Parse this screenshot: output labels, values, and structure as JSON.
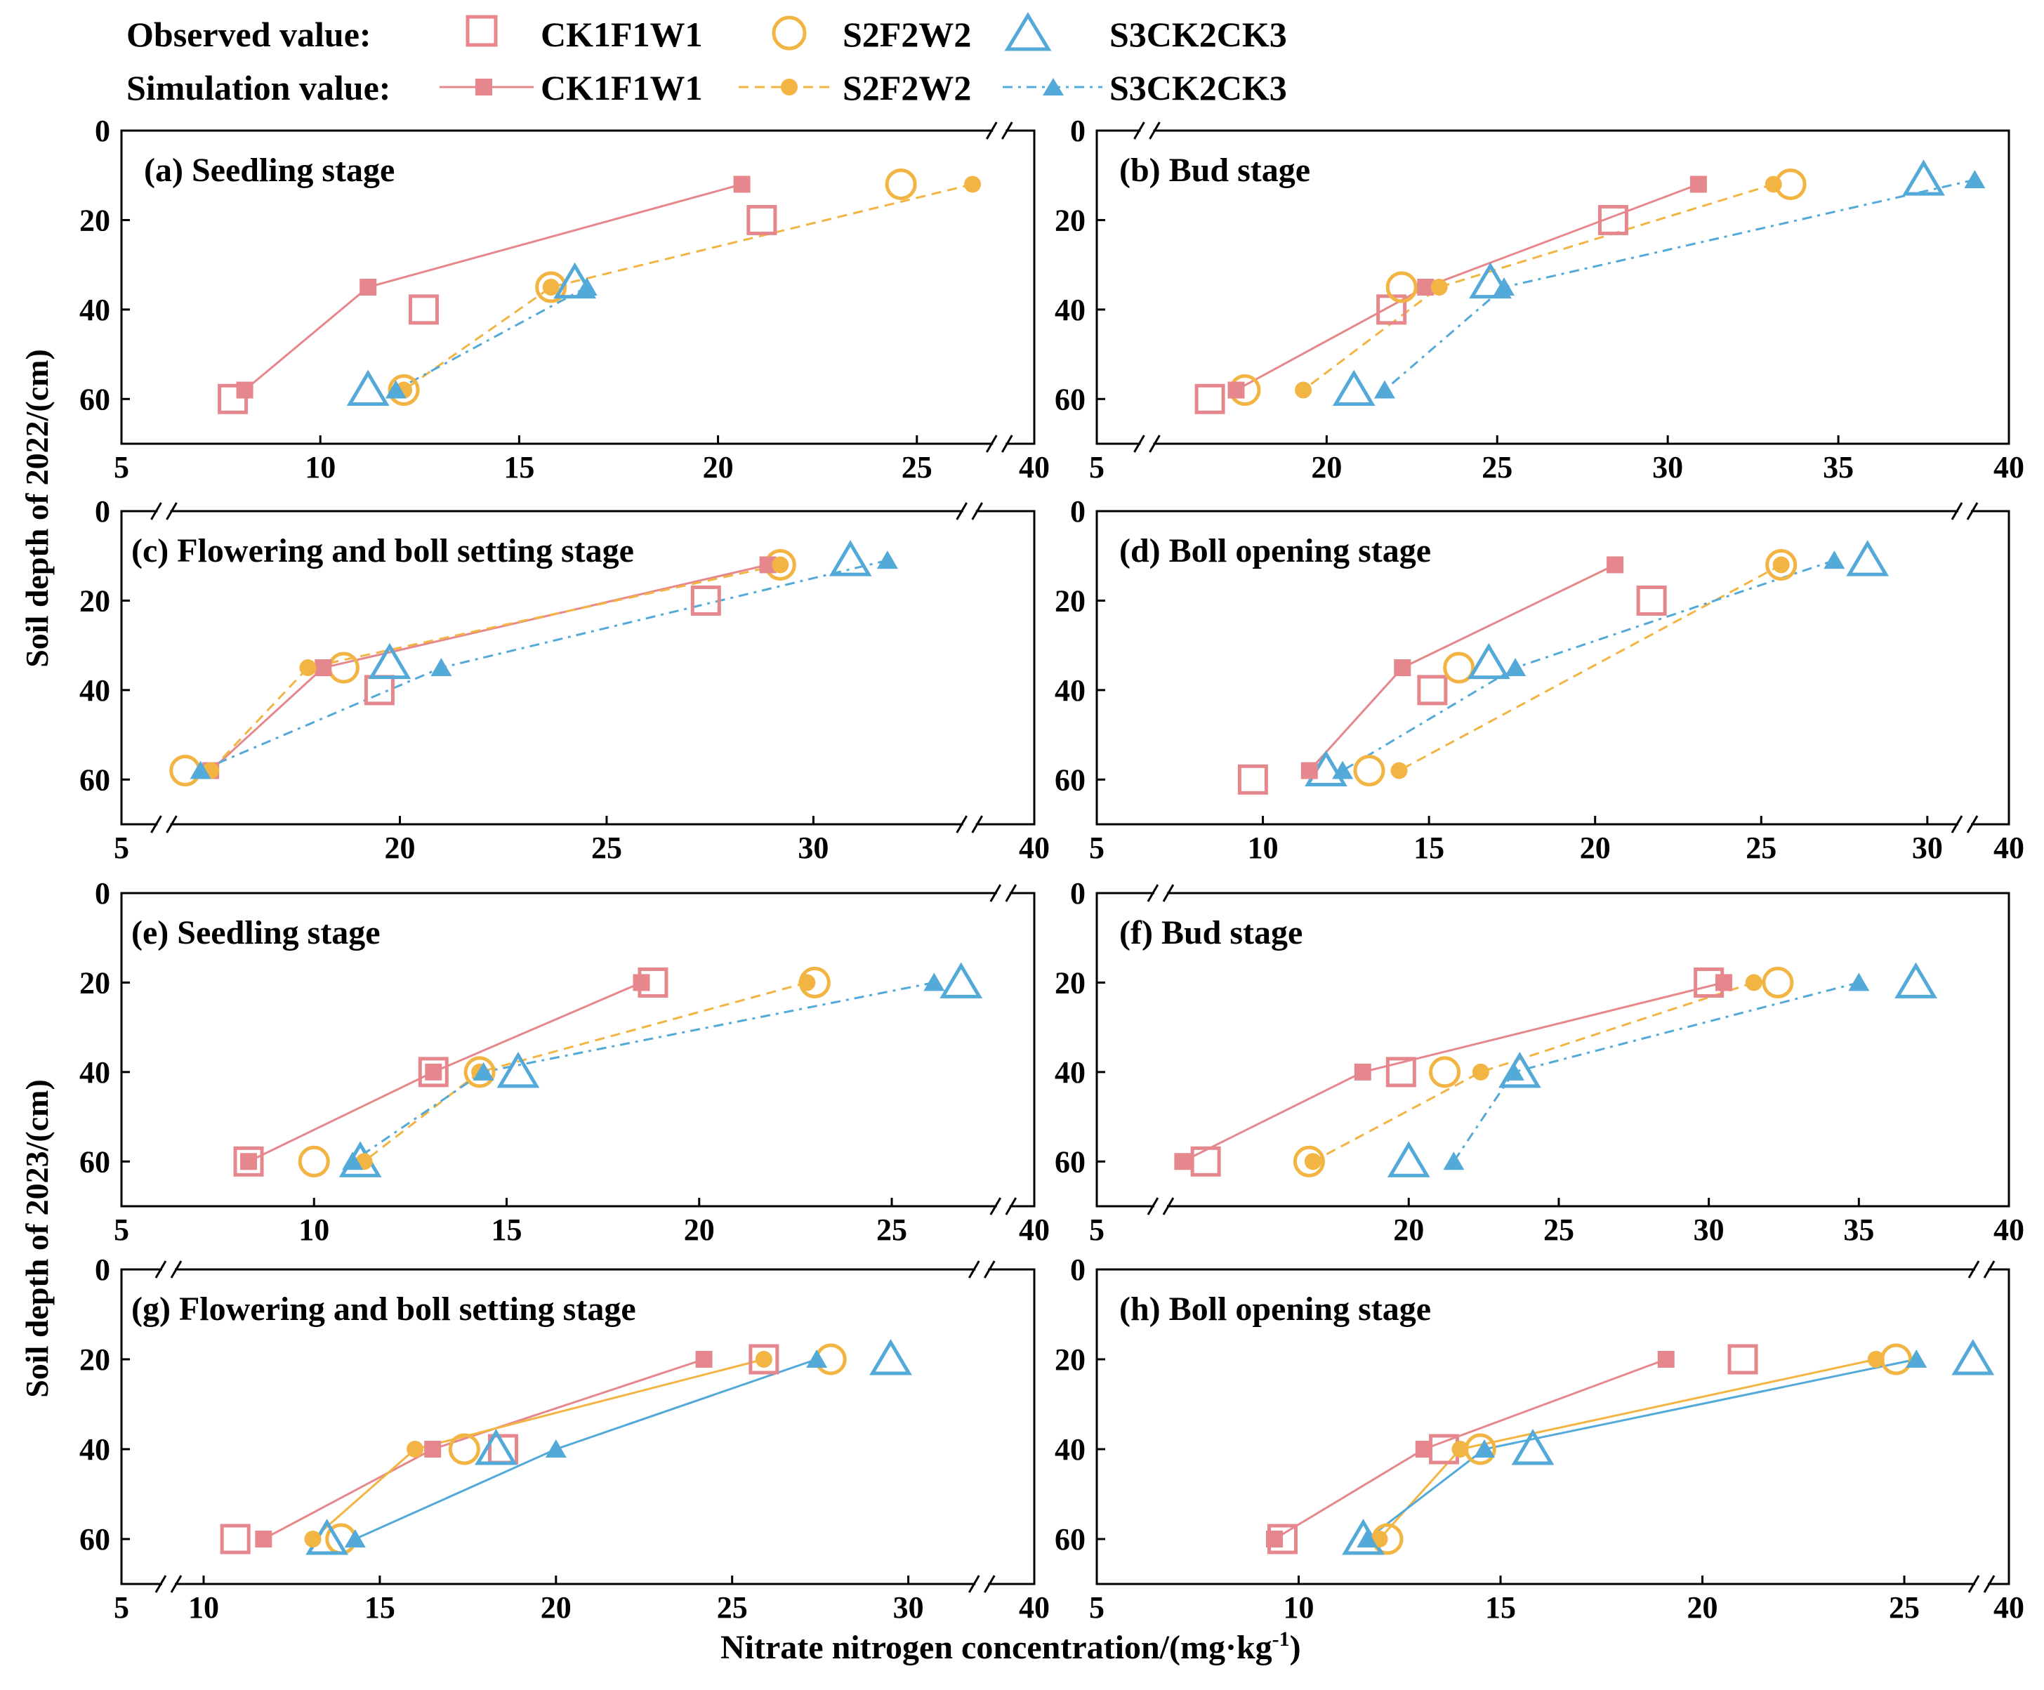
{
  "legend": {
    "observed_label": "Observed value:",
    "simulated_label": "Simulation value:",
    "treatments": [
      "CK1F1W1",
      "S2F2W2",
      "S3CK2CK3"
    ]
  },
  "ylabels": {
    "year2022": "Soil depth of 2022/(cm)",
    "year2023": "Soil depth of 2023/(cm)"
  },
  "xlabel": {
    "main": "Nitrate nitrogen concentration/(mg·kg",
    "superscript": "-1",
    "close": ")"
  },
  "colors": {
    "CK1F1W1": "#e5878c",
    "S2F2W2": "#f2b443",
    "S3CK2CK3": "#53a9d7"
  },
  "chart_data": [
    {
      "id": "a",
      "type": "scatter",
      "title": "(a) Seedling stage",
      "xlim": [
        5,
        40
      ],
      "xbreak": [
        27,
        39
      ],
      "xticks": [
        5,
        10,
        15,
        20,
        25,
        40
      ],
      "ylim": [
        70,
        0
      ],
      "yticks": [
        0,
        20,
        40,
        60
      ],
      "ylabel": "Soil depth of 2022/(cm)",
      "series": [
        {
          "name": "CK1F1W1",
          "kind": "observed",
          "points": [
            [
              21.1,
              20
            ],
            [
              12.6,
              40
            ],
            [
              7.8,
              60
            ]
          ]
        },
        {
          "name": "S2F2W2",
          "kind": "observed",
          "points": [
            [
              24.6,
              12
            ],
            [
              15.8,
              35
            ],
            [
              12.1,
              58
            ]
          ]
        },
        {
          "name": "S3CK2CK3",
          "kind": "observed",
          "points": [
            [
              16.4,
              34
            ],
            [
              11.2,
              58
            ]
          ]
        },
        {
          "name": "CK1F1W1",
          "kind": "simulated",
          "points": [
            [
              20.6,
              12
            ],
            [
              11.2,
              35
            ],
            [
              8.1,
              58
            ]
          ]
        },
        {
          "name": "S2F2W2",
          "kind": "simulated",
          "points": [
            [
              26.4,
              12
            ],
            [
              15.8,
              35
            ],
            [
              12.1,
              58
            ]
          ]
        },
        {
          "name": "S3CK2CK3",
          "kind": "simulated",
          "points": [
            [
              16.7,
              35
            ],
            [
              11.9,
              58
            ]
          ]
        }
      ]
    },
    {
      "id": "b",
      "type": "scatter",
      "title": "(b) Bud stage",
      "xlim": [
        5,
        40
      ],
      "xbreak": [
        6.2,
        14
      ],
      "xticks": [
        5,
        20,
        25,
        30,
        35,
        40
      ],
      "ylim": [
        70,
        0
      ],
      "yticks": [
        0,
        20,
        40,
        60
      ],
      "ylabel": "Soil depth of 2022/(cm)",
      "series": [
        {
          "name": "CK1F1W1",
          "kind": "observed",
          "points": [
            [
              28.4,
              20
            ],
            [
              21.9,
              40
            ],
            [
              16.0,
              60
            ]
          ]
        },
        {
          "name": "S2F2W2",
          "kind": "observed",
          "points": [
            [
              33.6,
              12
            ],
            [
              22.2,
              35
            ],
            [
              17.2,
              58
            ]
          ]
        },
        {
          "name": "S3CK2CK3",
          "kind": "observed",
          "points": [
            [
              37.5,
              11
            ],
            [
              24.8,
              34
            ],
            [
              20.8,
              58
            ]
          ]
        },
        {
          "name": "CK1F1W1",
          "kind": "simulated",
          "points": [
            [
              30.9,
              12
            ],
            [
              22.9,
              35
            ],
            [
              16.9,
              58
            ]
          ]
        },
        {
          "name": "S2F2W2",
          "kind": "simulated",
          "points": [
            [
              33.1,
              12
            ],
            [
              23.3,
              35
            ],
            [
              19.2,
              58
            ]
          ]
        },
        {
          "name": "S3CK2CK3",
          "kind": "simulated",
          "points": [
            [
              39.0,
              11
            ],
            [
              25.2,
              35
            ],
            [
              21.7,
              58
            ]
          ]
        }
      ]
    },
    {
      "id": "c",
      "type": "scatter",
      "title": "(c) Flowering and boll setting stage",
      "xlim": [
        5,
        40
      ],
      "xbreak": [
        6,
        15.5
      ],
      "xticks": [
        5,
        20,
        25,
        30,
        40
      ],
      "xbreak2": [
        32.8,
        39
      ],
      "ylim": [
        70,
        0
      ],
      "yticks": [
        0,
        20,
        40,
        60
      ],
      "ylabel": "Soil depth of 2022/(cm)",
      "series": [
        {
          "name": "CK1F1W1",
          "kind": "observed",
          "points": [
            [
              27.4,
              20
            ],
            [
              19.6,
              40
            ]
          ]
        },
        {
          "name": "S2F2W2",
          "kind": "observed",
          "points": [
            [
              29.2,
              12
            ],
            [
              18.9,
              35
            ],
            [
              15.8,
              58
            ]
          ]
        },
        {
          "name": "S3CK2CK3",
          "kind": "observed",
          "points": [
            [
              30.8,
              11
            ],
            [
              19.8,
              34
            ]
          ]
        },
        {
          "name": "CK1F1W1",
          "kind": "simulated",
          "points": [
            [
              28.9,
              12
            ],
            [
              18.5,
              35
            ],
            [
              16.3,
              58
            ]
          ]
        },
        {
          "name": "S2F2W2",
          "kind": "simulated",
          "points": [
            [
              29.2,
              12
            ],
            [
              18.2,
              35
            ],
            [
              16.3,
              58
            ]
          ]
        },
        {
          "name": "S3CK2CK3",
          "kind": "simulated",
          "points": [
            [
              31.6,
              11
            ],
            [
              21.0,
              35
            ],
            [
              16.1,
              58
            ]
          ]
        }
      ]
    },
    {
      "id": "d",
      "type": "scatter",
      "title": "(d) Boll opening stage",
      "xlim": [
        5,
        40
      ],
      "xbreak": [
        31,
        39
      ],
      "xticks": [
        5,
        10,
        15,
        20,
        25,
        30,
        40
      ],
      "ylim": [
        70,
        0
      ],
      "yticks": [
        0,
        20,
        40,
        60
      ],
      "ylabel": "Soil depth of 2022/(cm)",
      "series": [
        {
          "name": "CK1F1W1",
          "kind": "observed",
          "points": [
            [
              21.7,
              20
            ],
            [
              15.1,
              40
            ],
            [
              9.7,
              60
            ]
          ]
        },
        {
          "name": "S2F2W2",
          "kind": "observed",
          "points": [
            [
              25.6,
              12
            ],
            [
              15.9,
              35
            ],
            [
              13.2,
              58
            ]
          ]
        },
        {
          "name": "S3CK2CK3",
          "kind": "observed",
          "points": [
            [
              28.2,
              11
            ],
            [
              16.8,
              34
            ],
            [
              11.9,
              58
            ]
          ]
        },
        {
          "name": "CK1F1W1",
          "kind": "simulated",
          "points": [
            [
              20.6,
              12
            ],
            [
              14.2,
              35
            ],
            [
              11.4,
              58
            ]
          ]
        },
        {
          "name": "S2F2W2",
          "kind": "simulated",
          "points": [
            [
              25.6,
              12
            ],
            [
              14.1,
              58
            ]
          ]
        },
        {
          "name": "S3CK2CK3",
          "kind": "simulated",
          "points": [
            [
              27.2,
              11
            ],
            [
              17.6,
              35
            ],
            [
              12.4,
              58
            ]
          ]
        }
      ]
    },
    {
      "id": "e",
      "type": "scatter",
      "title": "(e) Seedling stage",
      "xlim": [
        5,
        40
      ],
      "xbreak": [
        27.8,
        38.6
      ],
      "xticks": [
        5,
        10,
        15,
        20,
        25,
        40
      ],
      "ylim": [
        70,
        0
      ],
      "yticks": [
        0,
        20,
        40,
        60
      ],
      "ylabel": "Soil depth of 2023/(cm)",
      "series": [
        {
          "name": "CK1F1W1",
          "kind": "observed",
          "points": [
            [
              18.8,
              20
            ],
            [
              13.1,
              40
            ],
            [
              8.3,
              60
            ]
          ]
        },
        {
          "name": "S2F2W2",
          "kind": "observed",
          "points": [
            [
              23.0,
              20
            ],
            [
              14.3,
              40
            ],
            [
              10.0,
              60
            ]
          ]
        },
        {
          "name": "S3CK2CK3",
          "kind": "observed",
          "points": [
            [
              26.8,
              20
            ],
            [
              15.3,
              40
            ],
            [
              11.2,
              60
            ]
          ]
        },
        {
          "name": "CK1F1W1",
          "kind": "simulated",
          "points": [
            [
              18.5,
              20
            ],
            [
              13.1,
              40
            ],
            [
              8.3,
              60
            ]
          ]
        },
        {
          "name": "S2F2W2",
          "kind": "simulated",
          "points": [
            [
              22.8,
              20
            ],
            [
              14.3,
              40
            ],
            [
              11.3,
              60
            ]
          ]
        },
        {
          "name": "S3CK2CK3",
          "kind": "simulated",
          "points": [
            [
              26.1,
              20
            ],
            [
              14.4,
              40
            ],
            [
              11.0,
              60
            ]
          ]
        }
      ]
    },
    {
      "id": "f",
      "type": "scatter",
      "title": "(f) Bud stage",
      "xlim": [
        5,
        40
      ],
      "xbreak": [
        7,
        14
      ],
      "xticks": [
        5,
        20,
        25,
        30,
        35,
        40
      ],
      "ylim": [
        70,
        0
      ],
      "yticks": [
        0,
        20,
        40,
        60
      ],
      "ylabel": "Soil depth of 2023/(cm)",
      "series": [
        {
          "name": "CK1F1W1",
          "kind": "observed",
          "points": [
            [
              30.0,
              20
            ],
            [
              19.8,
              40
            ],
            [
              14.7,
              60
            ]
          ]
        },
        {
          "name": "S2F2W2",
          "kind": "observed",
          "points": [
            [
              32.3,
              20
            ],
            [
              21.2,
              40
            ],
            [
              17.4,
              60
            ]
          ]
        },
        {
          "name": "S3CK2CK3",
          "kind": "observed",
          "points": [
            [
              36.9,
              20
            ],
            [
              23.7,
              40
            ],
            [
              20.0,
              60
            ]
          ]
        },
        {
          "name": "CK1F1W1",
          "kind": "simulated",
          "points": [
            [
              30.5,
              20
            ],
            [
              18.8,
              40
            ],
            [
              14.1,
              60
            ]
          ]
        },
        {
          "name": "S2F2W2",
          "kind": "simulated",
          "points": [
            [
              31.5,
              20
            ],
            [
              22.4,
              40
            ],
            [
              17.5,
              60
            ]
          ]
        },
        {
          "name": "S3CK2CK3",
          "kind": "simulated",
          "points": [
            [
              35.0,
              20
            ],
            [
              23.5,
              40
            ],
            [
              21.5,
              60
            ]
          ]
        }
      ]
    },
    {
      "id": "g",
      "type": "scatter",
      "title": "(g) Flowering and boll setting stage",
      "xlim": [
        5,
        40
      ],
      "xbreak": [
        6.8,
        8.9
      ],
      "xbreak2": [
        31.8,
        39
      ],
      "xticks": [
        5,
        10,
        15,
        20,
        25,
        30,
        40
      ],
      "ylim": [
        70,
        0
      ],
      "yticks": [
        0,
        20,
        40,
        60
      ],
      "ylabel": "Soil depth of 2023/(cm)",
      "series": [
        {
          "name": "CK1F1W1",
          "kind": "observed",
          "points": [
            [
              25.9,
              20
            ],
            [
              18.5,
              40
            ],
            [
              10.9,
              60
            ]
          ]
        },
        {
          "name": "S2F2W2",
          "kind": "observed",
          "points": [
            [
              27.8,
              20
            ],
            [
              17.4,
              40
            ],
            [
              13.9,
              60
            ]
          ]
        },
        {
          "name": "S3CK2CK3",
          "kind": "observed",
          "points": [
            [
              29.5,
              20
            ],
            [
              18.3,
              40
            ],
            [
              13.5,
              60
            ]
          ]
        },
        {
          "name": "CK1F1W1",
          "kind": "simulated",
          "points": [
            [
              24.2,
              20
            ],
            [
              16.5,
              40
            ],
            [
              11.7,
              60
            ]
          ]
        },
        {
          "name": "S2F2W2",
          "kind": "simulated",
          "points": [
            [
              25.9,
              20
            ],
            [
              16.0,
              40
            ],
            [
              13.1,
              60
            ]
          ]
        },
        {
          "name": "S3CK2CK3",
          "kind": "simulated",
          "points": [
            [
              27.4,
              20
            ],
            [
              20.0,
              40
            ],
            [
              14.3,
              60
            ]
          ]
        }
      ]
    },
    {
      "id": "h",
      "type": "scatter",
      "title": "(h) Boll opening stage",
      "xlim": [
        5,
        40
      ],
      "xbreak": [
        26.8,
        38.6
      ],
      "xticks": [
        5,
        10,
        15,
        20,
        25,
        40
      ],
      "ylim": [
        70,
        0
      ],
      "yticks": [
        0,
        20,
        40,
        60
      ],
      "ylabel": "Soil depth of 2023/(cm)",
      "series": [
        {
          "name": "CK1F1W1",
          "kind": "observed",
          "points": [
            [
              21.0,
              20
            ],
            [
              13.6,
              40
            ],
            [
              9.6,
              60
            ]
          ]
        },
        {
          "name": "S2F2W2",
          "kind": "observed",
          "points": [
            [
              24.8,
              20
            ],
            [
              14.5,
              40
            ],
            [
              12.2,
              60
            ]
          ]
        },
        {
          "name": "S3CK2CK3",
          "kind": "observed",
          "points": [
            [
              26.7,
              20
            ],
            [
              15.8,
              40
            ],
            [
              11.6,
              60
            ]
          ]
        },
        {
          "name": "CK1F1W1",
          "kind": "simulated",
          "points": [
            [
              19.1,
              20
            ],
            [
              13.1,
              40
            ],
            [
              9.4,
              60
            ]
          ]
        },
        {
          "name": "S2F2W2",
          "kind": "simulated",
          "points": [
            [
              24.3,
              20
            ],
            [
              14.0,
              40
            ],
            [
              12.0,
              60
            ]
          ]
        },
        {
          "name": "S3CK2CK3",
          "kind": "simulated",
          "points": [
            [
              25.3,
              20
            ],
            [
              14.6,
              40
            ],
            [
              11.7,
              60
            ]
          ]
        }
      ]
    }
  ]
}
